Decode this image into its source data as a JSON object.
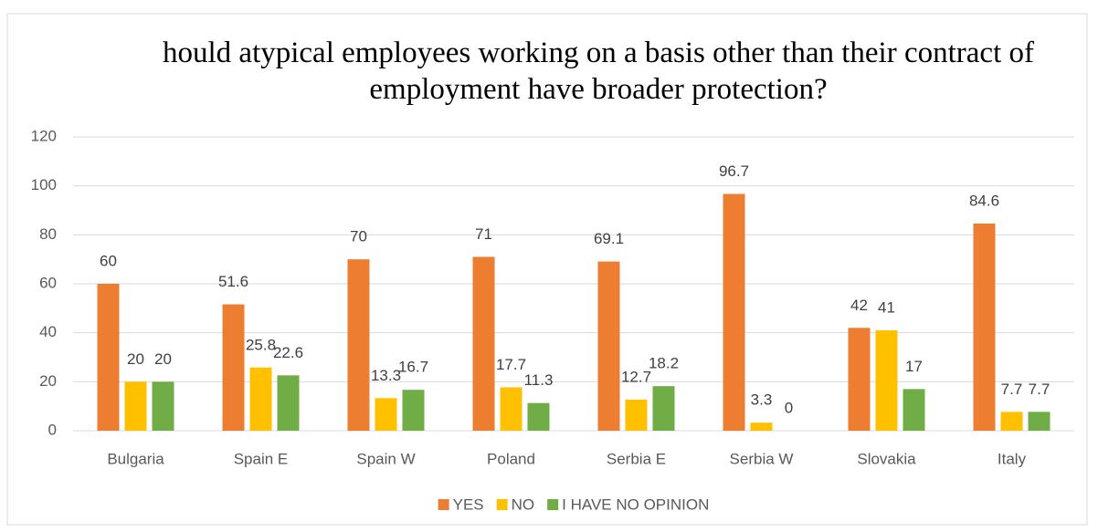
{
  "chart_data": {
    "type": "bar",
    "title": "hould atypical employees working on a basis other than their contract of employment have broader protection?",
    "categories": [
      "Bulgaria",
      "Spain E",
      "Spain W",
      "Poland",
      "Serbia E",
      "Serbia W",
      "Slovakia",
      "Italy"
    ],
    "series": [
      {
        "name": "YES",
        "color": "#ED7D31",
        "values": [
          60,
          51.6,
          70,
          71,
          69.1,
          96.7,
          42,
          84.6
        ]
      },
      {
        "name": "NO",
        "color": "#FFC000",
        "values": [
          20,
          25.8,
          13.3,
          17.7,
          12.7,
          3.3,
          41,
          7.7
        ]
      },
      {
        "name": "I HAVE NO OPINION",
        "color": "#70AD47",
        "values": [
          20,
          22.6,
          16.7,
          11.3,
          18.2,
          0,
          17,
          7.7
        ]
      }
    ],
    "ylim": [
      0,
      120
    ],
    "yticks": [
      0,
      20,
      40,
      60,
      80,
      100,
      120
    ],
    "grid": true,
    "legend": "bottom"
  }
}
